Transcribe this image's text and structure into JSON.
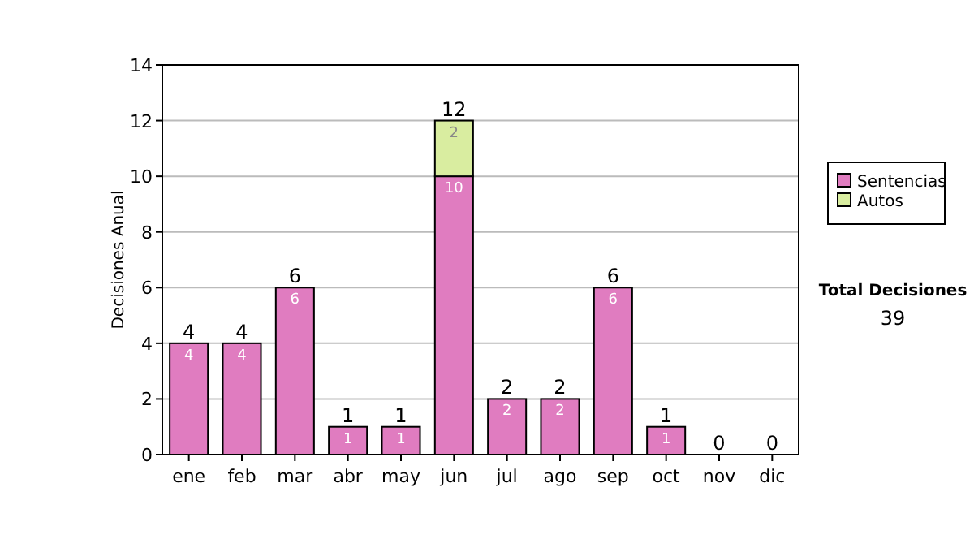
{
  "chart_data": {
    "type": "bar",
    "stacked": true,
    "ylabel": "Decisiones Anual",
    "categories": [
      "ene",
      "feb",
      "mar",
      "abr",
      "may",
      "jun",
      "jul",
      "ago",
      "sep",
      "oct",
      "nov",
      "dic"
    ],
    "series": [
      {
        "name": "Sentencias",
        "color": "#e07cc0",
        "values": [
          4,
          4,
          6,
          1,
          1,
          10,
          2,
          2,
          6,
          1,
          0,
          0
        ],
        "value_labels": [
          "4",
          "4",
          "6",
          "1",
          "1",
          "10",
          "2",
          "2",
          "6",
          "1",
          null,
          null
        ]
      },
      {
        "name": "Autos",
        "color": "#d9eda0",
        "values": [
          0,
          0,
          0,
          0,
          0,
          2,
          0,
          0,
          0,
          0,
          0,
          0
        ],
        "value_labels": [
          null,
          null,
          null,
          null,
          null,
          "2",
          null,
          null,
          null,
          null,
          null,
          null
        ]
      }
    ],
    "totals": [
      "4",
      "4",
      "6",
      "1",
      "1",
      "12",
      "2",
      "2",
      "6",
      "1",
      "0",
      "0"
    ],
    "ylim": [
      0,
      14
    ],
    "yticks": [
      0,
      2,
      4,
      6,
      8,
      10,
      12,
      14
    ],
    "grid": "y",
    "legend": "right",
    "annotations": [
      "Total Decisiones",
      "39"
    ]
  }
}
